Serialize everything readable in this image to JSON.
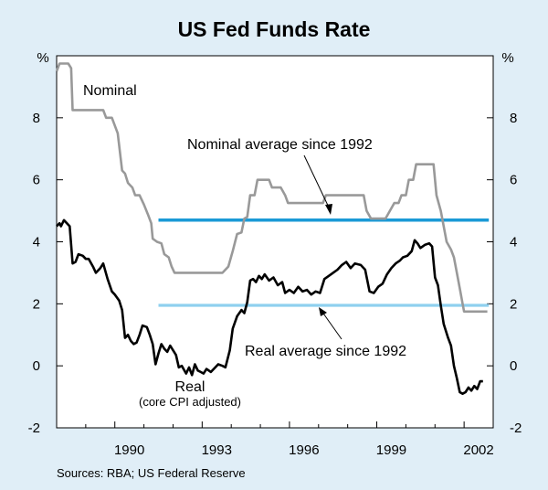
{
  "chart_data": {
    "type": "line",
    "title": "US Fed Funds Rate",
    "ylabel_left": "%",
    "ylabel_right": "%",
    "ylim": [
      -2,
      10
    ],
    "xlim": [
      1988.0,
      2003.0
    ],
    "yticks": [
      -2,
      0,
      2,
      4,
      6,
      8
    ],
    "xticks": [
      1990,
      1993,
      1996,
      1999,
      2002
    ],
    "source": "Sources: RBA; US Federal Reserve",
    "series": [
      {
        "name": "Nominal",
        "color": "#999999",
        "points": [
          [
            1988.0,
            9.5
          ],
          [
            1988.1,
            9.75
          ],
          [
            1988.4,
            9.75
          ],
          [
            1988.5,
            9.6
          ],
          [
            1988.55,
            8.25
          ],
          [
            1989.6,
            8.25
          ],
          [
            1989.7,
            8.0
          ],
          [
            1989.9,
            8.0
          ],
          [
            1990.0,
            7.75
          ],
          [
            1990.1,
            7.5
          ],
          [
            1990.25,
            6.3
          ],
          [
            1990.35,
            6.2
          ],
          [
            1990.45,
            5.9
          ],
          [
            1990.6,
            5.75
          ],
          [
            1990.7,
            5.5
          ],
          [
            1990.85,
            5.5
          ],
          [
            1991.0,
            5.2
          ],
          [
            1991.15,
            4.85
          ],
          [
            1991.25,
            4.6
          ],
          [
            1991.3,
            4.1
          ],
          [
            1991.45,
            4.0
          ],
          [
            1991.6,
            3.95
          ],
          [
            1991.7,
            3.6
          ],
          [
            1991.85,
            3.5
          ],
          [
            1991.95,
            3.2
          ],
          [
            1992.05,
            3.0
          ],
          [
            1993.7,
            3.0
          ],
          [
            1993.9,
            3.2
          ],
          [
            1994.05,
            3.7
          ],
          [
            1994.2,
            4.25
          ],
          [
            1994.35,
            4.3
          ],
          [
            1994.45,
            4.75
          ],
          [
            1994.55,
            4.8
          ],
          [
            1994.65,
            5.5
          ],
          [
            1994.8,
            5.5
          ],
          [
            1994.9,
            6.0
          ],
          [
            1995.3,
            6.0
          ],
          [
            1995.4,
            5.75
          ],
          [
            1995.7,
            5.75
          ],
          [
            1995.85,
            5.5
          ],
          [
            1995.95,
            5.25
          ],
          [
            1997.15,
            5.25
          ],
          [
            1997.25,
            5.5
          ],
          [
            1998.55,
            5.5
          ],
          [
            1998.65,
            5.0
          ],
          [
            1998.8,
            4.75
          ],
          [
            1998.95,
            4.75
          ],
          [
            1999.3,
            4.75
          ],
          [
            1999.45,
            5.0
          ],
          [
            1999.6,
            5.25
          ],
          [
            1999.75,
            5.25
          ],
          [
            1999.85,
            5.5
          ],
          [
            2000.0,
            5.5
          ],
          [
            2000.1,
            6.0
          ],
          [
            2000.25,
            6.0
          ],
          [
            2000.35,
            6.5
          ],
          [
            2000.95,
            6.5
          ],
          [
            2001.05,
            5.5
          ],
          [
            2001.2,
            5.0
          ],
          [
            2001.3,
            4.5
          ],
          [
            2001.4,
            4.0
          ],
          [
            2001.55,
            3.75
          ],
          [
            2001.65,
            3.5
          ],
          [
            2001.75,
            3.0
          ],
          [
            2001.85,
            2.5
          ],
          [
            2001.95,
            2.0
          ],
          [
            2002.0,
            1.75
          ],
          [
            2002.8,
            1.75
          ]
        ]
      },
      {
        "name": "Real",
        "color": "#000000",
        "points": [
          [
            1988.0,
            4.5
          ],
          [
            1988.1,
            4.6
          ],
          [
            1988.15,
            4.5
          ],
          [
            1988.25,
            4.7
          ],
          [
            1988.35,
            4.6
          ],
          [
            1988.45,
            4.5
          ],
          [
            1988.55,
            3.3
          ],
          [
            1988.65,
            3.35
          ],
          [
            1988.75,
            3.6
          ],
          [
            1988.9,
            3.55
          ],
          [
            1989.0,
            3.45
          ],
          [
            1989.1,
            3.45
          ],
          [
            1989.25,
            3.2
          ],
          [
            1989.35,
            3.0
          ],
          [
            1989.5,
            3.15
          ],
          [
            1989.6,
            3.3
          ],
          [
            1989.75,
            2.8
          ],
          [
            1989.9,
            2.4
          ],
          [
            1990.0,
            2.3
          ],
          [
            1990.15,
            2.1
          ],
          [
            1990.25,
            1.8
          ],
          [
            1990.35,
            0.9
          ],
          [
            1990.45,
            1.0
          ],
          [
            1990.55,
            0.8
          ],
          [
            1990.65,
            0.7
          ],
          [
            1990.75,
            0.75
          ],
          [
            1990.85,
            1.0
          ],
          [
            1990.95,
            1.3
          ],
          [
            1991.1,
            1.25
          ],
          [
            1991.2,
            1.0
          ],
          [
            1991.3,
            0.7
          ],
          [
            1991.4,
            0.05
          ],
          [
            1991.5,
            0.4
          ],
          [
            1991.6,
            0.7
          ],
          [
            1991.7,
            0.55
          ],
          [
            1991.8,
            0.45
          ],
          [
            1991.9,
            0.65
          ],
          [
            1992.0,
            0.5
          ],
          [
            1992.1,
            0.35
          ],
          [
            1992.2,
            -0.05
          ],
          [
            1992.3,
            0.0
          ],
          [
            1992.45,
            -0.25
          ],
          [
            1992.55,
            -0.05
          ],
          [
            1992.65,
            -0.3
          ],
          [
            1992.75,
            0.05
          ],
          [
            1992.85,
            -0.15
          ],
          [
            1992.95,
            -0.2
          ],
          [
            1993.05,
            -0.25
          ],
          [
            1993.15,
            -0.1
          ],
          [
            1993.3,
            -0.2
          ],
          [
            1993.45,
            -0.05
          ],
          [
            1993.55,
            0.05
          ],
          [
            1993.7,
            0.0
          ],
          [
            1993.8,
            -0.05
          ],
          [
            1993.95,
            0.5
          ],
          [
            1994.05,
            1.2
          ],
          [
            1994.2,
            1.6
          ],
          [
            1994.35,
            1.8
          ],
          [
            1994.45,
            1.7
          ],
          [
            1994.55,
            2.05
          ],
          [
            1994.65,
            2.75
          ],
          [
            1994.75,
            2.8
          ],
          [
            1994.85,
            2.7
          ],
          [
            1994.95,
            2.9
          ],
          [
            1995.05,
            2.8
          ],
          [
            1995.15,
            2.95
          ],
          [
            1995.3,
            2.75
          ],
          [
            1995.45,
            2.85
          ],
          [
            1995.6,
            2.6
          ],
          [
            1995.75,
            2.7
          ],
          [
            1995.85,
            2.35
          ],
          [
            1996.0,
            2.45
          ],
          [
            1996.15,
            2.35
          ],
          [
            1996.3,
            2.55
          ],
          [
            1996.45,
            2.4
          ],
          [
            1996.6,
            2.45
          ],
          [
            1996.75,
            2.3
          ],
          [
            1996.9,
            2.4
          ],
          [
            1997.05,
            2.35
          ],
          [
            1997.2,
            2.8
          ],
          [
            1997.35,
            2.9
          ],
          [
            1997.5,
            3.0
          ],
          [
            1997.65,
            3.1
          ],
          [
            1997.8,
            3.25
          ],
          [
            1997.95,
            3.35
          ],
          [
            1998.1,
            3.15
          ],
          [
            1998.25,
            3.3
          ],
          [
            1998.45,
            3.25
          ],
          [
            1998.6,
            3.1
          ],
          [
            1998.75,
            2.4
          ],
          [
            1998.9,
            2.35
          ],
          [
            1999.05,
            2.55
          ],
          [
            1999.2,
            2.65
          ],
          [
            1999.35,
            2.95
          ],
          [
            1999.5,
            3.15
          ],
          [
            1999.65,
            3.3
          ],
          [
            1999.8,
            3.4
          ],
          [
            1999.9,
            3.5
          ],
          [
            2000.05,
            3.55
          ],
          [
            2000.2,
            3.7
          ],
          [
            2000.3,
            4.05
          ],
          [
            2000.4,
            3.95
          ],
          [
            2000.5,
            3.8
          ],
          [
            2000.65,
            3.9
          ],
          [
            2000.8,
            3.95
          ],
          [
            2000.9,
            3.85
          ],
          [
            2001.0,
            2.85
          ],
          [
            2001.1,
            2.6
          ],
          [
            2001.2,
            1.95
          ],
          [
            2001.3,
            1.35
          ],
          [
            2001.45,
            0.9
          ],
          [
            2001.55,
            0.65
          ],
          [
            2001.65,
            0.0
          ],
          [
            2001.75,
            -0.4
          ],
          [
            2001.85,
            -0.85
          ],
          [
            2001.95,
            -0.9
          ],
          [
            2002.05,
            -0.85
          ],
          [
            2002.15,
            -0.7
          ],
          [
            2002.25,
            -0.8
          ],
          [
            2002.35,
            -0.65
          ],
          [
            2002.45,
            -0.75
          ],
          [
            2002.55,
            -0.5
          ],
          [
            2002.65,
            -0.5
          ]
        ]
      },
      {
        "name": "Nominal average since 1992",
        "color": "#1a9ad6",
        "points": [
          [
            1991.5,
            4.7
          ],
          [
            2002.85,
            4.7
          ]
        ]
      },
      {
        "name": "Real average since 1992",
        "color": "#8fd0ef",
        "points": [
          [
            1991.5,
            1.95
          ],
          [
            2002.85,
            1.95
          ]
        ]
      }
    ],
    "annotations": {
      "nominal_label": "Nominal",
      "real_label": "Real",
      "real_sublabel": "(core CPI adjusted)",
      "nominal_avg_label": "Nominal average since 1992",
      "real_avg_label": "Real average since 1992"
    }
  }
}
